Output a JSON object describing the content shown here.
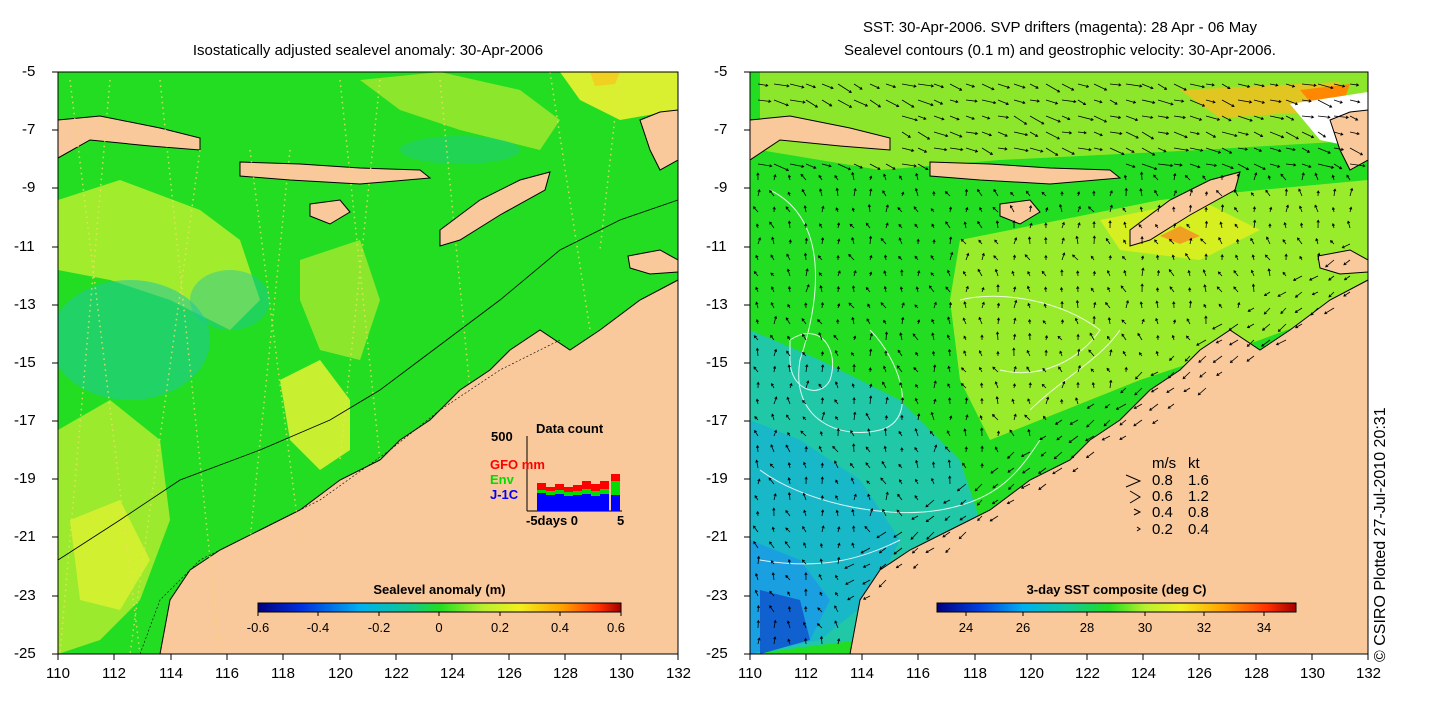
{
  "left_panel": {
    "title": "Isostatically adjusted sealevel anomaly: 30-Apr-2006",
    "colorbar": {
      "label": "Sealevel anomaly (m)",
      "ticks": [
        "-0.6",
        "-0.4",
        "-0.2",
        "0",
        "0.2",
        "0.4",
        "0.6"
      ],
      "range": [
        -0.6,
        0.6
      ]
    },
    "inset": {
      "title": "Data count",
      "ymax_label": "500",
      "series": [
        {
          "name": "GFO mm",
          "color": "#ff0000"
        },
        {
          "name": "Env",
          "color": "#00dd00"
        },
        {
          "name": "J-1C",
          "color": "#0000ff"
        }
      ],
      "x_label": "-5days 0",
      "x_end_label": "5"
    }
  },
  "right_panel": {
    "title_line1": "SST: 30-Apr-2006. SVP drifters (magenta): 28 Apr - 06 May",
    "title_line2": "Sealevel contours (0.1 m) and geostrophic velocity: 30-Apr-2006.",
    "colorbar": {
      "label": "3-day SST composite (deg C)",
      "ticks": [
        "24",
        "26",
        "28",
        "30",
        "32",
        "34"
      ],
      "range": [
        23,
        35.5
      ]
    },
    "velocity_legend": {
      "header_ms": "m/s",
      "header_kt": "kt",
      "rows": [
        {
          "ms": "0.8",
          "kt": "1.6"
        },
        {
          "ms": "0.6",
          "kt": "1.2"
        },
        {
          "ms": "0.4",
          "kt": "0.8"
        },
        {
          "ms": "0.2",
          "kt": "0.4"
        }
      ]
    }
  },
  "axes": {
    "lat_ticks": [
      "-5",
      "-7",
      "-9",
      "-11",
      "-13",
      "-15",
      "-17",
      "-19",
      "-21",
      "-23",
      "-25"
    ],
    "lon_ticks": [
      "110",
      "112",
      "114",
      "116",
      "118",
      "120",
      "122",
      "124",
      "126",
      "128",
      "130",
      "132"
    ],
    "lat_range": [
      -25,
      -5
    ],
    "lon_range": [
      110,
      132
    ]
  },
  "copyright": "© CSIRO Plotted 27-Jul-2010 20:31",
  "colors": {
    "land": "#f9c89b",
    "sea_green": "#22dd22",
    "sea_yellow": "#c9f030",
    "sea_blue": "#22b8c8"
  }
}
